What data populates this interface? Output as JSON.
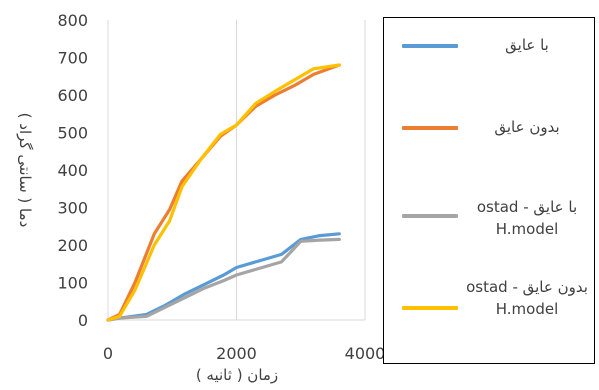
{
  "chart_data": {
    "type": "line",
    "title": "",
    "xlabel": "زمان ( ثانیه )",
    "ylabel": "دما ( سانتی گراد )",
    "xlim": [
      0,
      4000
    ],
    "ylim": [
      0,
      800
    ],
    "x_ticks": [
      "0",
      "2000",
      "4000"
    ],
    "y_ticks": [
      "0",
      "100",
      "200",
      "300",
      "400",
      "500",
      "600",
      "700",
      "800"
    ],
    "grid": "vertical",
    "legend_position": "right",
    "series": [
      {
        "name": "با عایق",
        "color": "#5B9BD5",
        "x": [
          0,
          180,
          600,
          900,
          1200,
          1500,
          1800,
          2000,
          2400,
          2700,
          3000,
          3300,
          3600
        ],
        "y": [
          0,
          5,
          15,
          40,
          70,
          95,
          120,
          140,
          160,
          175,
          215,
          225,
          230
        ]
      },
      {
        "name": "بدون عایق",
        "color": "#ED7D31",
        "x": [
          0,
          180,
          420,
          720,
          960,
          1150,
          1450,
          1750,
          2000,
          2300,
          2600,
          2900,
          3200,
          3600
        ],
        "y": [
          0,
          15,
          100,
          230,
          295,
          370,
          430,
          490,
          520,
          570,
          600,
          625,
          655,
          680
        ]
      },
      {
        "name": "با عایق - ostad H.model",
        "color": "#A5A5A5",
        "x": [
          0,
          180,
          600,
          900,
          1200,
          1500,
          1800,
          2000,
          2400,
          2700,
          3000,
          3300,
          3600
        ],
        "y": [
          0,
          5,
          10,
          35,
          60,
          85,
          105,
          120,
          140,
          155,
          210,
          213,
          215
        ]
      },
      {
        "name": "بدون عایق - ostad H.model",
        "color": "#FFC000",
        "x": [
          0,
          180,
          420,
          720,
          960,
          1150,
          1450,
          1750,
          2000,
          2300,
          2600,
          2900,
          3200,
          3600
        ],
        "y": [
          0,
          10,
          80,
          200,
          265,
          355,
          430,
          495,
          520,
          578,
          610,
          640,
          670,
          680
        ]
      }
    ]
  }
}
